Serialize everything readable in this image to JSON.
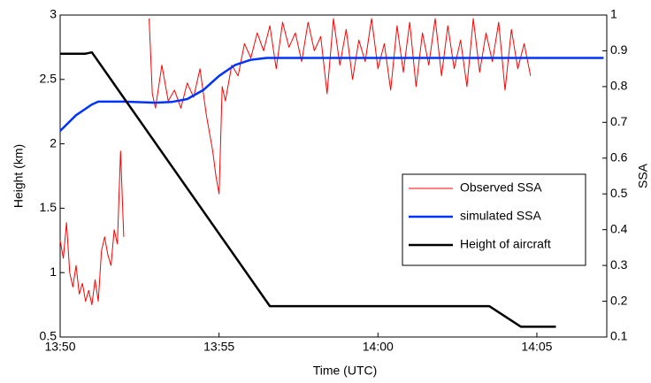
{
  "chart_data": {
    "type": "line",
    "x_label": "Time (UTC)",
    "y_label": "Height (km)",
    "y2_label": "SSA",
    "xlim": [
      830,
      847.2
    ],
    "ylim": [
      0.5,
      3
    ],
    "y2lim": [
      0.1,
      1
    ],
    "xticks": [
      {
        "value": 830,
        "label": "13:50"
      },
      {
        "value": 835,
        "label": "13:55"
      },
      {
        "value": 840,
        "label": "14:00"
      },
      {
        "value": 845,
        "label": "14:05"
      }
    ],
    "yticks": [
      0.5,
      1,
      1.5,
      2,
      2.5,
      3
    ],
    "y2ticks": [
      0.1,
      0.2,
      0.3,
      0.4,
      0.5,
      0.6,
      0.7,
      0.8,
      0.9,
      1
    ],
    "series": [
      {
        "name": "Observed SSA",
        "color": "#ff0000",
        "axis": "y2",
        "x": [
          830.0,
          830.1,
          830.2,
          830.3,
          830.4,
          830.5,
          830.6,
          830.7,
          830.8,
          830.9,
          831.0,
          831.1,
          831.2,
          831.3,
          831.4,
          831.5,
          831.6,
          831.7,
          831.8,
          831.9,
          832.0,
          832.5,
          832.8,
          832.9,
          833.0,
          833.2,
          833.4,
          833.6,
          833.8,
          834.0,
          834.2,
          834.4,
          834.6,
          834.8,
          834.9,
          835.0,
          835.1,
          835.2,
          835.4,
          835.6,
          835.8,
          836.0,
          836.2,
          836.4,
          836.6,
          836.8,
          837.0,
          837.2,
          837.4,
          837.6,
          837.8,
          838.0,
          838.2,
          838.4,
          838.6,
          838.8,
          839.0,
          839.2,
          839.4,
          839.6,
          839.8,
          840.0,
          840.2,
          840.4,
          840.6,
          840.8,
          841.0,
          841.2,
          841.4,
          841.6,
          841.8,
          842.0,
          842.2,
          842.4,
          842.6,
          842.8,
          843.0,
          843.2,
          843.4,
          843.6,
          843.8,
          844.0,
          844.2,
          844.4,
          844.6,
          844.8
        ],
        "values": [
          0.37,
          0.32,
          0.42,
          0.28,
          0.24,
          0.3,
          0.22,
          0.25,
          0.2,
          0.23,
          0.19,
          0.26,
          0.2,
          0.34,
          0.38,
          0.33,
          0.3,
          0.4,
          0.36,
          0.62,
          0.38,
          null,
          0.99,
          0.78,
          0.74,
          0.86,
          0.76,
          0.79,
          0.74,
          0.81,
          0.77,
          0.85,
          0.72,
          0.62,
          0.55,
          0.5,
          0.8,
          0.76,
          0.86,
          0.83,
          0.92,
          0.88,
          0.95,
          0.9,
          0.97,
          0.85,
          0.98,
          0.91,
          0.95,
          0.87,
          0.98,
          0.9,
          0.94,
          0.78,
          0.99,
          0.86,
          0.96,
          0.82,
          0.93,
          0.87,
          0.99,
          0.85,
          0.92,
          0.79,
          0.97,
          0.84,
          0.98,
          0.8,
          0.95,
          0.86,
          0.99,
          0.83,
          0.97,
          0.85,
          0.93,
          0.8,
          0.99,
          0.84,
          0.95,
          0.87,
          0.98,
          0.79,
          0.96,
          0.85,
          0.92,
          0.83
        ]
      },
      {
        "name": "simulated SSA",
        "color": "#0033ff",
        "axis": "y2",
        "x": [
          830.0,
          830.5,
          831.0,
          831.2,
          832.0,
          833.0,
          833.5,
          834.0,
          834.5,
          835.0,
          835.5,
          836.0,
          836.5,
          838.0,
          840.0,
          842.0,
          844.0,
          846.0,
          847.1
        ],
        "values": [
          0.676,
          0.72,
          0.75,
          0.758,
          0.758,
          0.755,
          0.757,
          0.765,
          0.79,
          0.83,
          0.86,
          0.875,
          0.88,
          0.88,
          0.88,
          0.88,
          0.88,
          0.88,
          0.88
        ]
      },
      {
        "name": "Height of aircraft",
        "color": "#000000",
        "axis": "y",
        "x": [
          830.0,
          830.8,
          831.0,
          836.6,
          843.5,
          844.5,
          845.6
        ],
        "values": [
          2.7,
          2.7,
          2.71,
          0.74,
          0.74,
          0.58,
          0.58
        ]
      }
    ]
  }
}
